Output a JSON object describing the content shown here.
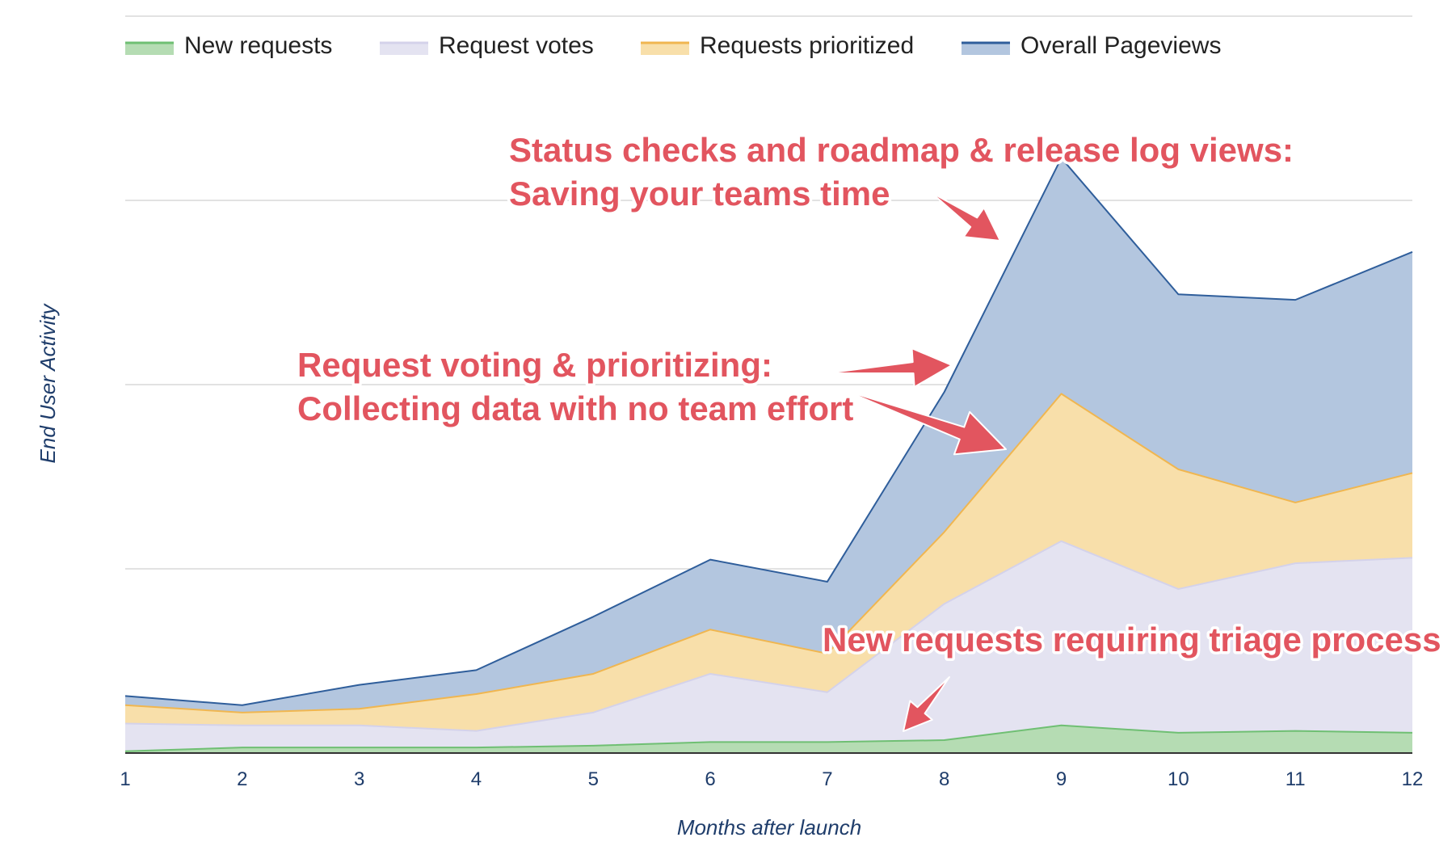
{
  "chart_data": {
    "type": "area",
    "stacked": true,
    "categories": [
      "1",
      "2",
      "3",
      "4",
      "5",
      "6",
      "7",
      "8",
      "9",
      "10",
      "11",
      "12"
    ],
    "xlabel": "Months after launch",
    "ylabel": "End User Activity",
    "ylim": [
      0,
      4
    ],
    "y_ticks_labeled": false,
    "grid": true,
    "legend_position": "top",
    "series": [
      {
        "name": "New requests",
        "color": "#6fbf73",
        "fill": "#b5dcb3",
        "values": [
          0.01,
          0.03,
          0.03,
          0.03,
          0.04,
          0.06,
          0.06,
          0.07,
          0.15,
          0.11,
          0.12,
          0.11
        ]
      },
      {
        "name": "Request votes",
        "color": "#d4d2ea",
        "fill": "#e4e3f1",
        "values": [
          0.15,
          0.12,
          0.12,
          0.09,
          0.18,
          0.37,
          0.27,
          0.74,
          1.0,
          0.78,
          0.91,
          0.95
        ]
      },
      {
        "name": "Requests prioritized",
        "color": "#f0b650",
        "fill": "#f8dfaa",
        "values": [
          0.1,
          0.07,
          0.09,
          0.2,
          0.21,
          0.24,
          0.21,
          0.39,
          0.8,
          0.65,
          0.33,
          0.46
        ]
      },
      {
        "name": "Overall Pageviews",
        "color": "#2f5e9b",
        "fill": "#b3c6df",
        "values": [
          0.05,
          0.04,
          0.13,
          0.13,
          0.31,
          0.38,
          0.39,
          0.76,
          1.28,
          0.95,
          1.1,
          1.2
        ]
      }
    ],
    "annotations": [
      {
        "lines": [
          "Status checks and roadmap & release log views:",
          "Saving your teams time"
        ]
      },
      {
        "lines": [
          "Request voting & prioritizing:",
          "Collecting data with no team effort"
        ]
      },
      {
        "lines": [
          "New requests requiring triage process"
        ]
      }
    ],
    "annotation_color": "#e2555f"
  }
}
